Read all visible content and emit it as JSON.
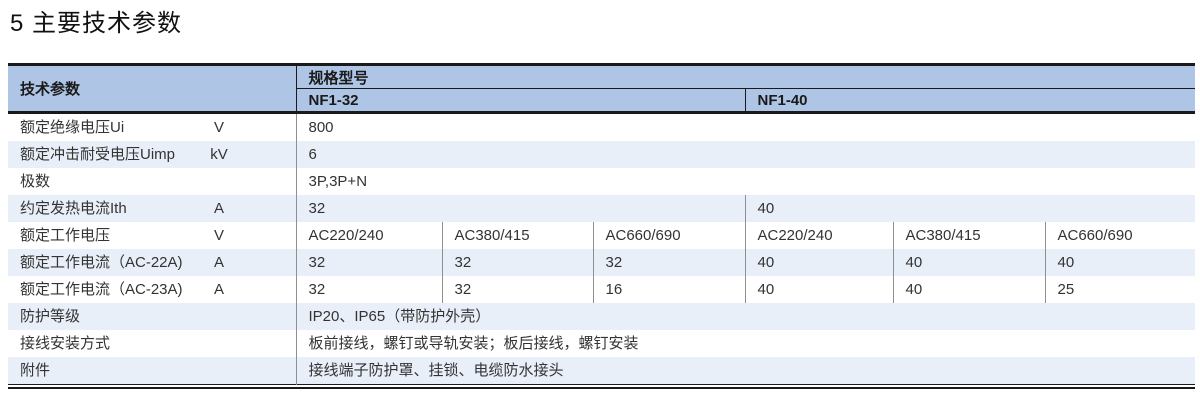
{
  "page_title": "5 主要技术参数",
  "colors": {
    "header_bg": "#aec5e6",
    "row_alt_bg": "#e9eff8",
    "border_dark": "#1a1a1a",
    "border_gray": "#8f8f8f",
    "text": "#333333"
  },
  "table": {
    "header": {
      "param_col": "技术参数",
      "spec_group": "规格型号",
      "models": [
        "NF1-32",
        "NF1-40"
      ]
    },
    "rows": [
      {
        "label": "额定绝缘电压Ui",
        "unit": "V",
        "cells": [
          {
            "text": "800",
            "span": 6
          }
        ]
      },
      {
        "label": "额定冲击耐受电压Uimp",
        "unit": "kV",
        "cells": [
          {
            "text": "6",
            "span": 6
          }
        ]
      },
      {
        "label": "极数",
        "unit": "",
        "cells": [
          {
            "text": "3P,3P+N",
            "span": 6
          }
        ]
      },
      {
        "label": "约定发热电流Ith",
        "unit": "A",
        "cells": [
          {
            "text": "32",
            "span": 3
          },
          {
            "text": "40",
            "span": 3
          }
        ]
      },
      {
        "label": "额定工作电压",
        "unit": "V",
        "cells": [
          {
            "text": "AC220/240",
            "span": 1
          },
          {
            "text": "AC380/415",
            "span": 1
          },
          {
            "text": "AC660/690",
            "span": 1
          },
          {
            "text": "AC220/240",
            "span": 1
          },
          {
            "text": "AC380/415",
            "span": 1
          },
          {
            "text": "AC660/690",
            "span": 1
          }
        ]
      },
      {
        "label": "额定工作电流（AC-22A)",
        "unit": "A",
        "cells": [
          {
            "text": "32",
            "span": 1
          },
          {
            "text": "32",
            "span": 1
          },
          {
            "text": "32",
            "span": 1
          },
          {
            "text": "40",
            "span": 1
          },
          {
            "text": "40",
            "span": 1
          },
          {
            "text": "40",
            "span": 1
          }
        ]
      },
      {
        "label": "额定工作电流（AC-23A)",
        "unit": "A",
        "cells": [
          {
            "text": "32",
            "span": 1
          },
          {
            "text": "32",
            "span": 1
          },
          {
            "text": "16",
            "span": 1
          },
          {
            "text": "40",
            "span": 1
          },
          {
            "text": "40",
            "span": 1
          },
          {
            "text": "25",
            "span": 1
          }
        ]
      },
      {
        "label": "防护等级",
        "unit": "",
        "cells": [
          {
            "text": "IP20、IP65（带防护外壳）",
            "span": 6
          }
        ]
      },
      {
        "label": "接线安装方式",
        "unit": "",
        "cells": [
          {
            "text": "板前接线，螺钉或导轨安装；板后接线，螺钉安装",
            "span": 6
          }
        ]
      },
      {
        "label": "附件",
        "unit": "",
        "cells": [
          {
            "text": "接线端子防护罩、挂锁、电缆防水接头",
            "span": 6
          }
        ]
      }
    ]
  }
}
